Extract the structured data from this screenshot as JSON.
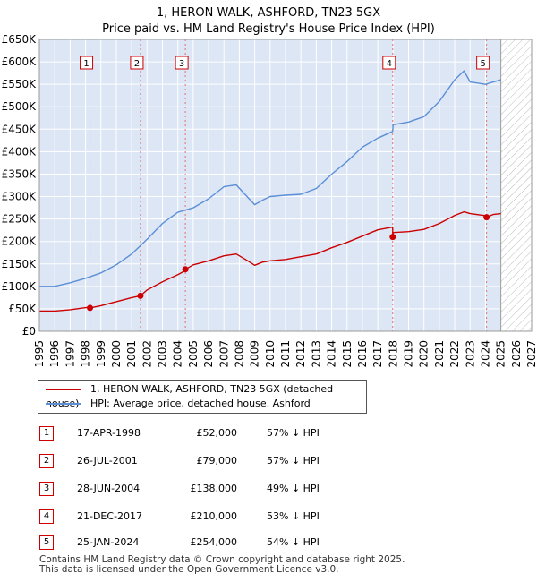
{
  "title_line1": "1, HERON WALK, ASHFORD, TN23 5GX",
  "title_line2": "Price paid vs. HM Land Registry's House Price Index (HPI)",
  "legend": {
    "property": "1, HERON WALK, ASHFORD, TN23 5GX (detached house)",
    "hpi": "HPI: Average price, detached house, Ashford"
  },
  "sales": [
    {
      "id": "1",
      "date": "17-APR-1998",
      "price": "£52,000",
      "hpi_diff": "57% ↓ HPI"
    },
    {
      "id": "2",
      "date": "26-JUL-2001",
      "price": "£79,000",
      "hpi_diff": "57% ↓ HPI"
    },
    {
      "id": "3",
      "date": "28-JUN-2004",
      "price": "£138,000",
      "hpi_diff": "49% ↓ HPI"
    },
    {
      "id": "4",
      "date": "21-DEC-2017",
      "price": "£210,000",
      "hpi_diff": "53% ↓ HPI"
    },
    {
      "id": "5",
      "date": "25-JAN-2024",
      "price": "£254,000",
      "hpi_diff": "54% ↓ HPI"
    }
  ],
  "footer_line1": "Contains HM Land Registry data © Crown copyright and database right 2025.",
  "footer_line2": "This data is licensed under the Open Government Licence v3.0.",
  "colors": {
    "property": "#cc0000",
    "hpi": "#5b8fd6",
    "band": "#dde6f5",
    "grid": "#cccccc"
  },
  "chart_data": {
    "type": "line",
    "xlim": [
      1995,
      2027
    ],
    "ylim": [
      0,
      650000
    ],
    "x_ticks": [
      1995,
      1996,
      1997,
      1998,
      1999,
      2000,
      2001,
      2002,
      2003,
      2004,
      2005,
      2006,
      2007,
      2008,
      2009,
      2010,
      2011,
      2012,
      2013,
      2014,
      2015,
      2016,
      2017,
      2018,
      2019,
      2020,
      2021,
      2022,
      2023,
      2024,
      2025,
      2026,
      2027
    ],
    "y_ticks": [
      {
        "v": 0,
        "label": "£0"
      },
      {
        "v": 50000,
        "label": "£50K"
      },
      {
        "v": 100000,
        "label": "£100K"
      },
      {
        "v": 150000,
        "label": "£150K"
      },
      {
        "v": 200000,
        "label": "£200K"
      },
      {
        "v": 250000,
        "label": "£250K"
      },
      {
        "v": 300000,
        "label": "£300K"
      },
      {
        "v": 350000,
        "label": "£350K"
      },
      {
        "v": 400000,
        "label": "£400K"
      },
      {
        "v": 450000,
        "label": "£450K"
      },
      {
        "v": 500000,
        "label": "£500K"
      },
      {
        "v": 550000,
        "label": "£550K"
      },
      {
        "v": 600000,
        "label": "£600K"
      },
      {
        "v": 650000,
        "label": "£650K"
      }
    ],
    "forecast_from": 2025.0,
    "sale_markers": [
      {
        "id": "1",
        "x": 1998.29,
        "y": 52000
      },
      {
        "id": "2",
        "x": 2001.57,
        "y": 79000
      },
      {
        "id": "3",
        "x": 2004.49,
        "y": 138000
      },
      {
        "id": "4",
        "x": 2017.97,
        "y": 210000
      },
      {
        "id": "5",
        "x": 2024.07,
        "y": 254000
      }
    ],
    "series": [
      {
        "name": "1, HERON WALK, ASHFORD, TN23 5GX (detached house)",
        "x": [
          1995,
          1996,
          1997,
          1998.29,
          1998.29,
          1999,
          2000,
          2001,
          2001.57,
          2001.57,
          2002,
          2003,
          2004,
          2004.49,
          2004.49,
          2005,
          2006,
          2007,
          2007.8,
          2008.5,
          2009,
          2009.5,
          2010,
          2011,
          2012,
          2013,
          2014,
          2015,
          2016,
          2017,
          2017.97,
          2017.97,
          2018,
          2019,
          2020,
          2021,
          2022,
          2022.6,
          2023,
          2024.07,
          2024.07,
          2024.5,
          2025
        ],
        "y": [
          45000,
          45000,
          48000,
          54000,
          52000,
          57000,
          66000,
          75000,
          79000,
          79000,
          92000,
          110000,
          126000,
          135000,
          138000,
          148000,
          157000,
          168000,
          172000,
          158000,
          147000,
          154000,
          157000,
          160000,
          166000,
          172000,
          186000,
          198000,
          212000,
          226000,
          232000,
          210000,
          220000,
          222000,
          227000,
          240000,
          258000,
          266000,
          262000,
          257000,
          254000,
          260000,
          262000
        ]
      },
      {
        "name": "HPI: Average price, detached house, Ashford",
        "x": [
          1995,
          1996,
          1997,
          1998,
          1999,
          2000,
          2001,
          2002,
          2003,
          2004,
          2005,
          2006,
          2007,
          2007.8,
          2008.5,
          2009,
          2009.5,
          2010,
          2011,
          2012,
          2013,
          2014,
          2015,
          2016,
          2017,
          2017.97,
          2018,
          2019,
          2020,
          2021,
          2022,
          2022.6,
          2023,
          2024,
          2025
        ],
        "y": [
          100000,
          100000,
          108000,
          118000,
          130000,
          148000,
          172000,
          205000,
          240000,
          265000,
          275000,
          295000,
          322000,
          326000,
          300000,
          282000,
          292000,
          300000,
          303000,
          305000,
          318000,
          350000,
          378000,
          410000,
          430000,
          445000,
          460000,
          466000,
          478000,
          512000,
          560000,
          580000,
          555000,
          550000,
          560000
        ]
      }
    ]
  }
}
